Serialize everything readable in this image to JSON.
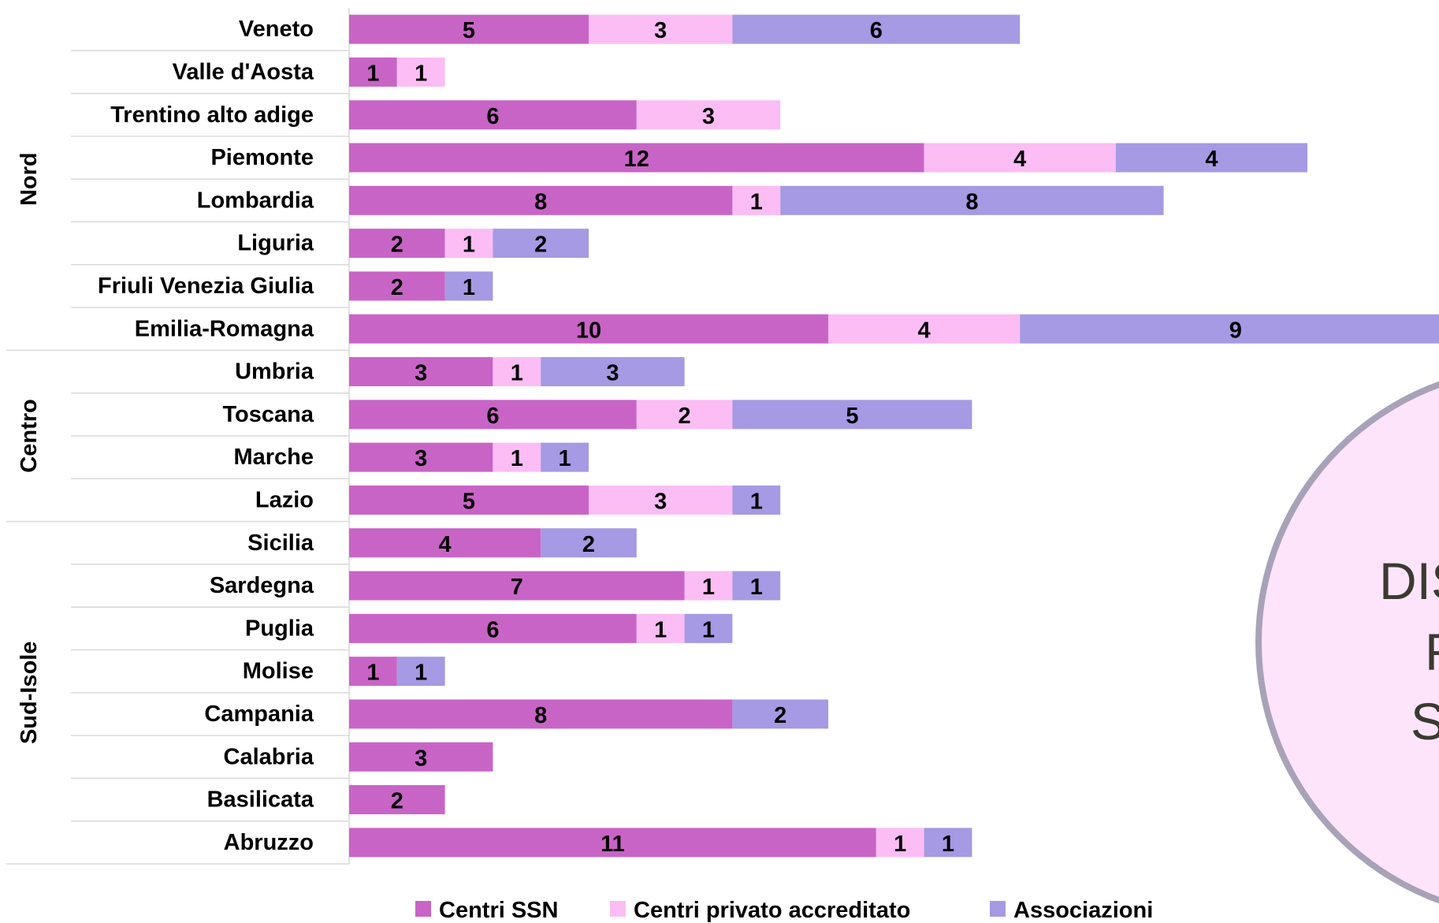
{
  "chart_data": {
    "type": "bar",
    "orientation": "horizontal",
    "stacked": true,
    "groups": [
      {
        "name": "Nord",
        "categories": [
          "Veneto",
          "Valle d'Aosta",
          "Trentino alto adige",
          "Piemonte",
          "Lombardia",
          "Liguria",
          "Friuli Venezia Giulia",
          "Emilia-Romagna"
        ]
      },
      {
        "name": "Centro",
        "categories": [
          "Umbria",
          "Toscana",
          "Marche",
          "Lazio"
        ]
      },
      {
        "name": "Sud-Isole",
        "categories": [
          "Sicilia",
          "Sardegna",
          "Puglia",
          "Molise",
          "Campania",
          "Calabria",
          "Basilicata",
          "Abruzzo"
        ]
      }
    ],
    "categories": [
      "Veneto",
      "Valle d'Aosta",
      "Trentino alto adige",
      "Piemonte",
      "Lombardia",
      "Liguria",
      "Friuli Venezia Giulia",
      "Emilia-Romagna",
      "Umbria",
      "Toscana",
      "Marche",
      "Lazio",
      "Sicilia",
      "Sardegna",
      "Puglia",
      "Molise",
      "Campania",
      "Calabria",
      "Basilicata",
      "Abruzzo"
    ],
    "series": [
      {
        "name": "Centri SSN",
        "color": "#c964c7",
        "values": [
          5,
          1,
          6,
          12,
          8,
          2,
          2,
          10,
          3,
          6,
          3,
          5,
          4,
          7,
          6,
          1,
          8,
          3,
          2,
          11
        ]
      },
      {
        "name": "Centri privato accreditato",
        "color": "#fbbdf4",
        "values": [
          3,
          1,
          3,
          4,
          1,
          1,
          0,
          4,
          1,
          2,
          1,
          3,
          0,
          1,
          1,
          0,
          0,
          0,
          0,
          1
        ]
      },
      {
        "name": "Associazioni",
        "color": "#a59ae3",
        "values": [
          6,
          0,
          0,
          4,
          8,
          2,
          1,
          9,
          3,
          5,
          1,
          1,
          2,
          1,
          1,
          1,
          2,
          0,
          0,
          1
        ]
      }
    ],
    "title": "",
    "xlabel": "",
    "ylabel": "",
    "legend": "bottom",
    "grid": false,
    "data_labels": true
  },
  "overlay": {
    "text_lines": [
      "DIS",
      "R",
      "S"
    ],
    "fill_color": "#fde4fb",
    "border_color": "#a8a2b8"
  }
}
